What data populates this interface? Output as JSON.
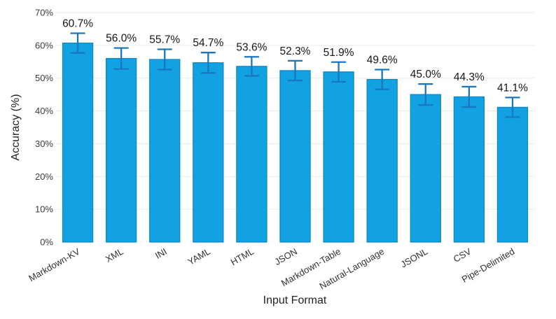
{
  "chart_data": {
    "type": "bar",
    "title": "",
    "xlabel": "Input Format",
    "ylabel": "Accuracy (%)",
    "categories": [
      "Markdown-KV",
      "XML",
      "INI",
      "YAML",
      "HTML",
      "JSON",
      "Markdown-Table",
      "Natural-Language",
      "JSONL",
      "CSV",
      "Pipe-Delimited"
    ],
    "values": [
      60.7,
      56.0,
      55.7,
      54.7,
      53.6,
      52.3,
      51.9,
      49.6,
      45.0,
      44.3,
      41.1
    ],
    "errors": [
      3.0,
      3.2,
      3.1,
      3.1,
      2.9,
      3.0,
      3.0,
      3.0,
      3.2,
      3.1,
      3.0
    ],
    "data_labels": [
      "60.7%",
      "56.0%",
      "55.7%",
      "54.7%",
      "53.6%",
      "52.3%",
      "51.9%",
      "49.6%",
      "45.0%",
      "44.3%",
      "41.1%"
    ],
    "ylim": [
      0,
      70
    ],
    "yticks": [
      0,
      10,
      20,
      30,
      40,
      50,
      60,
      70
    ],
    "ytick_labels": [
      "0%",
      "10%",
      "20%",
      "30%",
      "40%",
      "50%",
      "60%",
      "70%"
    ],
    "grid": true,
    "legend": "none",
    "xtick_rotation_deg": -30,
    "colors": {
      "bar_fill": "#12A2E4",
      "bar_stroke": "#0D87C9",
      "error_bar": "#1A77BE",
      "gridline": "#E8EAED",
      "background": "#FFFFFF"
    }
  }
}
